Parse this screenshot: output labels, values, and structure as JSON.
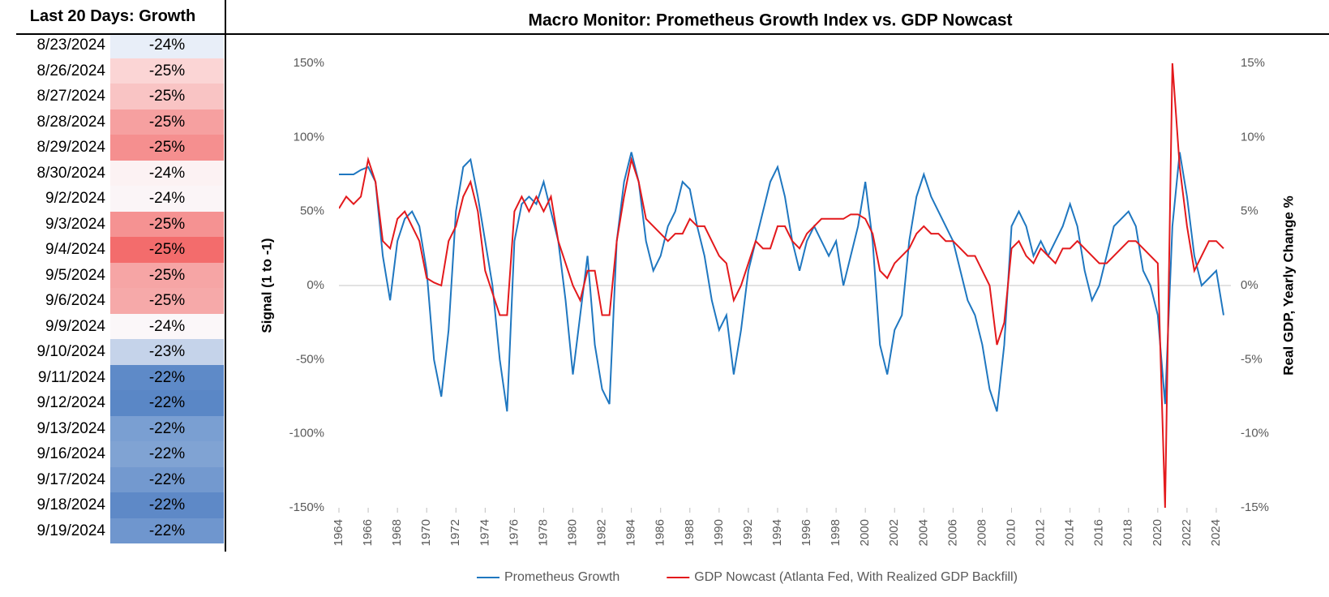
{
  "table": {
    "title": "Last 20 Days: Growth",
    "rows": [
      [
        "8/23/2024",
        "-24%"
      ],
      [
        "8/26/2024",
        "-25%"
      ],
      [
        "8/27/2024",
        "-25%"
      ],
      [
        "8/28/2024",
        "-25%"
      ],
      [
        "8/29/2024",
        "-25%"
      ],
      [
        "8/30/2024",
        "-24%"
      ],
      [
        "9/2/2024",
        "-24%"
      ],
      [
        "9/3/2024",
        "-25%"
      ],
      [
        "9/4/2024",
        "-25%"
      ],
      [
        "9/5/2024",
        "-25%"
      ],
      [
        "9/6/2024",
        "-25%"
      ],
      [
        "9/9/2024",
        "-24%"
      ],
      [
        "9/10/2024",
        "-23%"
      ],
      [
        "9/11/2024",
        "-22%"
      ],
      [
        "9/12/2024",
        "-22%"
      ],
      [
        "9/13/2024",
        "-22%"
      ],
      [
        "9/16/2024",
        "-22%"
      ],
      [
        "9/17/2024",
        "-22%"
      ],
      [
        "9/18/2024",
        "-22%"
      ],
      [
        "9/19/2024",
        "-22%"
      ]
    ],
    "colors": [
      "#e8eef8",
      "#fbd5d5",
      "#f9c4c4",
      "#f6a0a0",
      "#f58f8f",
      "#fcf2f3",
      "#fbf5f7",
      "#f59292",
      "#f36c6c",
      "#f6a5a5",
      "#f6a9a9",
      "#fbf7f9",
      "#c5d3ea",
      "#5e8ac8",
      "#5a87c6",
      "#7a9fd2",
      "#80a3d3",
      "#7399cf",
      "#5e89c7",
      "#6f96ce"
    ]
  },
  "chart_data": {
    "type": "line",
    "title": "Macro Monitor: Prometheus Growth Index vs. GDP Nowcast",
    "y_label": "Signal (1 to -1)",
    "y2_label": "Real GDP, Yearly Change %",
    "x": [
      1964,
      1964.5,
      1965,
      1965.5,
      1966,
      1966.5,
      1967,
      1967.5,
      1968,
      1968.5,
      1969,
      1969.5,
      1970,
      1970.5,
      1971,
      1971.5,
      1972,
      1972.5,
      1973,
      1973.5,
      1974,
      1974.5,
      1975,
      1975.5,
      1976,
      1976.5,
      1977,
      1977.5,
      1978,
      1978.5,
      1979,
      1979.5,
      1980,
      1980.5,
      1981,
      1981.5,
      1982,
      1982.5,
      1983,
      1983.5,
      1984,
      1984.5,
      1985,
      1985.5,
      1986,
      1986.5,
      1987,
      1987.5,
      1988,
      1988.5,
      1989,
      1989.5,
      1990,
      1990.5,
      1991,
      1991.5,
      1992,
      1992.5,
      1993,
      1993.5,
      1994,
      1994.5,
      1995,
      1995.5,
      1996,
      1996.5,
      1997,
      1997.5,
      1998,
      1998.5,
      1999,
      1999.5,
      2000,
      2000.5,
      2001,
      2001.5,
      2002,
      2002.5,
      2003,
      2003.5,
      2004,
      2004.5,
      2005,
      2005.5,
      2006,
      2006.5,
      2007,
      2007.5,
      2008,
      2008.5,
      2009,
      2009.5,
      2010,
      2010.5,
      2011,
      2011.5,
      2012,
      2012.5,
      2013,
      2013.5,
      2014,
      2014.5,
      2015,
      2015.5,
      2016,
      2016.5,
      2017,
      2017.5,
      2018,
      2018.5,
      2019,
      2019.5,
      2020,
      2020.5,
      2021,
      2021.5,
      2022,
      2022.5,
      2023,
      2023.5,
      2024,
      2024.5
    ],
    "xlim": [
      1964,
      2025
    ],
    "xticks": [
      1964,
      1966,
      1968,
      1970,
      1972,
      1974,
      1976,
      1978,
      1980,
      1982,
      1984,
      1986,
      1988,
      1990,
      1992,
      1994,
      1996,
      1998,
      2000,
      2002,
      2004,
      2006,
      2008,
      2010,
      2012,
      2014,
      2016,
      2018,
      2020,
      2022,
      2024
    ],
    "ylim": [
      -150,
      150
    ],
    "yticks": [
      {
        "value": 150,
        "label": "150%"
      },
      {
        "value": 100,
        "label": "100%"
      },
      {
        "value": 50,
        "label": "50%"
      },
      {
        "value": 0,
        "label": "0%"
      },
      {
        "value": -50,
        "label": "-50%"
      },
      {
        "value": -100,
        "label": "-100%"
      },
      {
        "value": -150,
        "label": "-150%"
      }
    ],
    "y2lim": [
      -15,
      15
    ],
    "y2ticks": [
      {
        "value": 15,
        "label": "15%"
      },
      {
        "value": 10,
        "label": "10%"
      },
      {
        "value": 5,
        "label": "5%"
      },
      {
        "value": 0,
        "label": "0%"
      },
      {
        "value": -5,
        "label": "-5%"
      },
      {
        "value": -10,
        "label": "-10%"
      },
      {
        "value": -15,
        "label": "-15%"
      }
    ],
    "legend": "bottom",
    "series": [
      {
        "name": "Prometheus Growth",
        "color": "#1f77c0",
        "axis": "y",
        "values": [
          75,
          75,
          75,
          78,
          80,
          70,
          20,
          -10,
          30,
          45,
          50,
          40,
          10,
          -50,
          -75,
          -30,
          50,
          80,
          85,
          60,
          30,
          0,
          -50,
          -85,
          30,
          55,
          60,
          55,
          70,
          50,
          30,
          -10,
          -60,
          -20,
          20,
          -40,
          -70,
          -80,
          30,
          70,
          90,
          70,
          30,
          10,
          20,
          40,
          50,
          70,
          65,
          40,
          20,
          -10,
          -30,
          -20,
          -60,
          -30,
          10,
          30,
          50,
          70,
          80,
          60,
          30,
          10,
          30,
          40,
          30,
          20,
          30,
          0,
          20,
          40,
          70,
          30,
          -40,
          -60,
          -30,
          -20,
          30,
          60,
          75,
          60,
          50,
          40,
          30,
          10,
          -10,
          -20,
          -40,
          -70,
          -85,
          -40,
          40,
          50,
          40,
          20,
          30,
          20,
          30,
          40,
          55,
          40,
          10,
          -10,
          0,
          20,
          40,
          45,
          50,
          40,
          10,
          0,
          -20,
          -80,
          40,
          90,
          60,
          20,
          0,
          5,
          10,
          -20
        ]
      },
      {
        "name": "GDP Nowcast (Atlanta Fed, With Realized GDP Backfill)",
        "color": "#e3191c",
        "axis": "y2",
        "values": [
          5.2,
          6,
          5.5,
          6,
          8.5,
          7,
          3,
          2.5,
          4.5,
          5,
          4,
          3,
          0.5,
          0.2,
          0,
          3,
          4,
          6,
          7,
          5,
          1,
          -0.5,
          -2,
          -2,
          5,
          6,
          5,
          6,
          5,
          6,
          3,
          1.5,
          0,
          -1,
          1,
          1,
          -2,
          -2,
          3,
          6,
          8.5,
          7,
          4.5,
          4,
          3.5,
          3,
          3.5,
          3.5,
          4.5,
          4,
          4,
          3,
          2,
          1.5,
          -1,
          0,
          1.5,
          3,
          2.5,
          2.5,
          4,
          4,
          3,
          2.5,
          3.5,
          4,
          4.5,
          4.5,
          4.5,
          4.5,
          4.8,
          4.8,
          4.5,
          3.5,
          1,
          0.5,
          1.5,
          2,
          2.5,
          3.5,
          4,
          3.5,
          3.5,
          3,
          3,
          2.5,
          2,
          2,
          1,
          0,
          -4,
          -2.5,
          2.5,
          3,
          2,
          1.5,
          2.5,
          2,
          1.5,
          2.5,
          2.5,
          3,
          2.5,
          2,
          1.5,
          1.5,
          2,
          2.5,
          3,
          3,
          2.5,
          2,
          1.5,
          -15,
          15,
          8,
          4,
          1,
          2,
          3,
          3,
          2.5
        ]
      }
    ]
  }
}
